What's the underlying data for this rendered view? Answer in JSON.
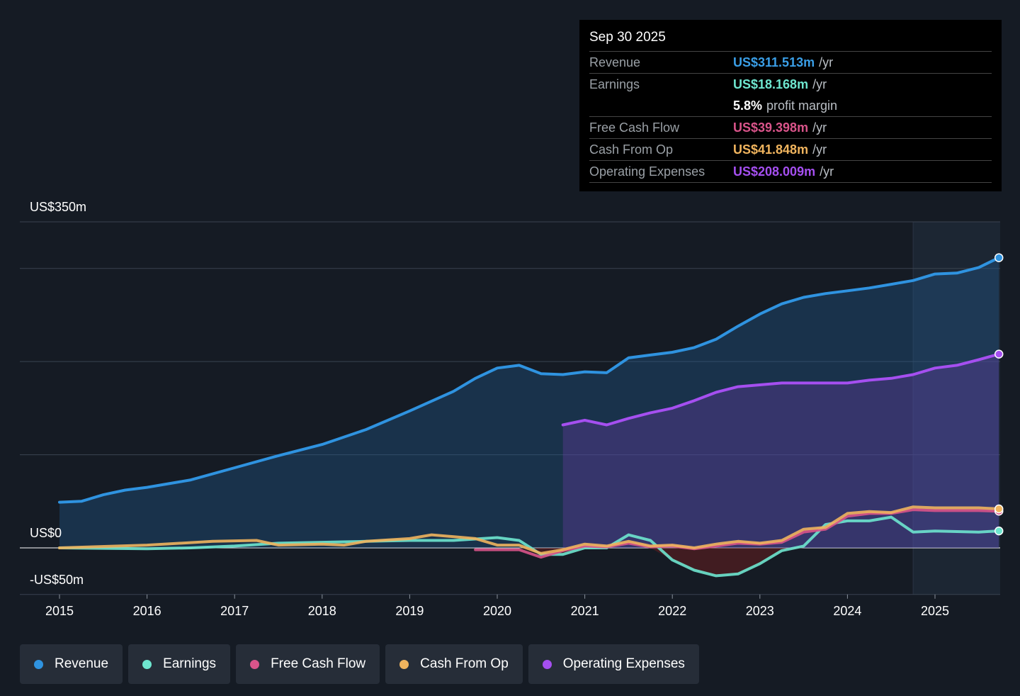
{
  "tooltip": {
    "date": "Sep 30 2025",
    "rows": [
      {
        "label": "Revenue",
        "value": "US$311.513m",
        "unit": "/yr",
        "color": "#3a9ee6"
      },
      {
        "label": "Earnings",
        "value": "US$18.168m",
        "unit": "/yr",
        "color": "#6ee6cf"
      },
      {
        "label": "",
        "value": "5.8%",
        "unit": "profit margin",
        "color": "#ffffff"
      },
      {
        "label": "Free Cash Flow",
        "value": "US$39.398m",
        "unit": "/yr",
        "color": "#d9548a"
      },
      {
        "label": "Cash From Op",
        "value": "US$41.848m",
        "unit": "/yr",
        "color": "#f0b45e"
      },
      {
        "label": "Operating Expenses",
        "value": "US$208.009m",
        "unit": "/yr",
        "color": "#a54ff0"
      }
    ]
  },
  "chart_data": {
    "type": "line",
    "ylim": [
      -50,
      350
    ],
    "xlim": [
      2014.6,
      2025.73
    ],
    "y_labels": [
      {
        "value": 350,
        "label": "US$350m"
      },
      {
        "value": 0,
        "label": "US$0"
      },
      {
        "value": -50,
        "label": "-US$50m"
      }
    ],
    "y_gridlines": [
      350,
      300,
      200,
      100,
      0,
      -50
    ],
    "x_ticks": [
      "2015",
      "2016",
      "2017",
      "2018",
      "2019",
      "2020",
      "2021",
      "2022",
      "2023",
      "2024",
      "2025"
    ],
    "highlight_from": 2024.75,
    "grid": true,
    "legend_placement": "bottom",
    "series": [
      {
        "name": "Revenue",
        "color": "#2f93e0",
        "fill": true,
        "points": [
          [
            2015,
            49
          ],
          [
            2015.25,
            50
          ],
          [
            2015.5,
            57
          ],
          [
            2015.75,
            62
          ],
          [
            2016,
            65
          ],
          [
            2016.5,
            73
          ],
          [
            2017,
            86
          ],
          [
            2017.5,
            99
          ],
          [
            2018,
            111
          ],
          [
            2018.5,
            127
          ],
          [
            2019,
            147
          ],
          [
            2019.5,
            168
          ],
          [
            2019.75,
            182
          ],
          [
            2020,
            193
          ],
          [
            2020.25,
            196
          ],
          [
            2020.5,
            187
          ],
          [
            2020.75,
            186
          ],
          [
            2021,
            189
          ],
          [
            2021.25,
            188
          ],
          [
            2021.5,
            204
          ],
          [
            2021.75,
            207
          ],
          [
            2022,
            210
          ],
          [
            2022.25,
            215
          ],
          [
            2022.5,
            224
          ],
          [
            2022.75,
            238
          ],
          [
            2023,
            251
          ],
          [
            2023.25,
            262
          ],
          [
            2023.5,
            269
          ],
          [
            2023.75,
            273
          ],
          [
            2024,
            276
          ],
          [
            2024.25,
            279
          ],
          [
            2024.5,
            283
          ],
          [
            2024.75,
            287
          ],
          [
            2025,
            294
          ],
          [
            2025.25,
            295
          ],
          [
            2025.5,
            301
          ],
          [
            2025.73,
            311.513
          ]
        ]
      },
      {
        "name": "Operating Expenses",
        "color": "#a54ff0",
        "fill": true,
        "points": [
          [
            2020.75,
            132
          ],
          [
            2021,
            137
          ],
          [
            2021.25,
            132
          ],
          [
            2021.5,
            139
          ],
          [
            2021.75,
            145
          ],
          [
            2022,
            150
          ],
          [
            2022.25,
            158
          ],
          [
            2022.5,
            167
          ],
          [
            2022.75,
            173
          ],
          [
            2023,
            175
          ],
          [
            2023.25,
            177
          ],
          [
            2023.5,
            177
          ],
          [
            2023.75,
            177
          ],
          [
            2024,
            177
          ],
          [
            2024.25,
            180
          ],
          [
            2024.5,
            182
          ],
          [
            2024.75,
            186
          ],
          [
            2025,
            193
          ],
          [
            2025.25,
            196
          ],
          [
            2025.5,
            202
          ],
          [
            2025.73,
            208.009
          ]
        ]
      },
      {
        "name": "Earnings",
        "color": "#6ee6cf",
        "fill": false,
        "points": [
          [
            2015,
            0
          ],
          [
            2016,
            -1
          ],
          [
            2016.5,
            0
          ],
          [
            2017,
            2
          ],
          [
            2017.5,
            5
          ],
          [
            2018,
            6
          ],
          [
            2018.5,
            7
          ],
          [
            2019,
            8
          ],
          [
            2019.5,
            8
          ],
          [
            2020,
            11
          ],
          [
            2020.25,
            8
          ],
          [
            2020.5,
            -7
          ],
          [
            2020.75,
            -7
          ],
          [
            2021,
            0
          ],
          [
            2021.25,
            0
          ],
          [
            2021.5,
            14
          ],
          [
            2021.75,
            8
          ],
          [
            2022,
            -13
          ],
          [
            2022.25,
            -24
          ],
          [
            2022.5,
            -30
          ],
          [
            2022.75,
            -28
          ],
          [
            2023,
            -17
          ],
          [
            2023.25,
            -3
          ],
          [
            2023.5,
            2
          ],
          [
            2023.75,
            25
          ],
          [
            2024,
            29
          ],
          [
            2024.25,
            29
          ],
          [
            2024.5,
            33
          ],
          [
            2024.75,
            17
          ],
          [
            2025,
            18
          ],
          [
            2025.5,
            17
          ],
          [
            2025.73,
            18.168
          ]
        ]
      },
      {
        "name": "Free Cash Flow",
        "color": "#d9548a",
        "fill": false,
        "points": [
          [
            2019.75,
            -2
          ],
          [
            2020,
            -2
          ],
          [
            2020.25,
            -2
          ],
          [
            2020.5,
            -10
          ],
          [
            2020.75,
            -3
          ],
          [
            2021,
            2
          ],
          [
            2021.25,
            1
          ],
          [
            2021.5,
            5
          ],
          [
            2021.75,
            1
          ],
          [
            2022,
            2
          ],
          [
            2022.25,
            -1
          ],
          [
            2022.5,
            2
          ],
          [
            2022.75,
            5
          ],
          [
            2023,
            4
          ],
          [
            2023.25,
            6
          ],
          [
            2023.5,
            17
          ],
          [
            2023.75,
            20
          ],
          [
            2024,
            34
          ],
          [
            2024.25,
            37
          ],
          [
            2024.5,
            37
          ],
          [
            2024.75,
            41
          ],
          [
            2025,
            40
          ],
          [
            2025.5,
            40
          ],
          [
            2025.73,
            39.398
          ]
        ]
      },
      {
        "name": "Cash From Op",
        "color": "#f0b45e",
        "fill": false,
        "points": [
          [
            2015,
            0
          ],
          [
            2016,
            3
          ],
          [
            2016.75,
            7
          ],
          [
            2017.25,
            8
          ],
          [
            2017.5,
            3
          ],
          [
            2018,
            4
          ],
          [
            2018.25,
            3
          ],
          [
            2018.5,
            7
          ],
          [
            2019,
            10
          ],
          [
            2019.25,
            14
          ],
          [
            2019.75,
            10
          ],
          [
            2020,
            3
          ],
          [
            2020.25,
            3
          ],
          [
            2020.5,
            -6
          ],
          [
            2020.75,
            -2
          ],
          [
            2021,
            4
          ],
          [
            2021.25,
            2
          ],
          [
            2021.5,
            7
          ],
          [
            2021.75,
            2
          ],
          [
            2022,
            3
          ],
          [
            2022.25,
            0
          ],
          [
            2022.5,
            4
          ],
          [
            2022.75,
            7
          ],
          [
            2023,
            5
          ],
          [
            2023.25,
            8
          ],
          [
            2023.5,
            20
          ],
          [
            2023.75,
            22
          ],
          [
            2024,
            37
          ],
          [
            2024.25,
            39
          ],
          [
            2024.5,
            38
          ],
          [
            2024.75,
            44
          ],
          [
            2025,
            43
          ],
          [
            2025.5,
            43
          ],
          [
            2025.73,
            41.848
          ]
        ]
      }
    ]
  },
  "legend": [
    {
      "label": "Revenue",
      "color": "#2f93e0"
    },
    {
      "label": "Earnings",
      "color": "#6ee6cf"
    },
    {
      "label": "Free Cash Flow",
      "color": "#d9548a"
    },
    {
      "label": "Cash From Op",
      "color": "#f0b45e"
    },
    {
      "label": "Operating Expenses",
      "color": "#a54ff0"
    }
  ]
}
